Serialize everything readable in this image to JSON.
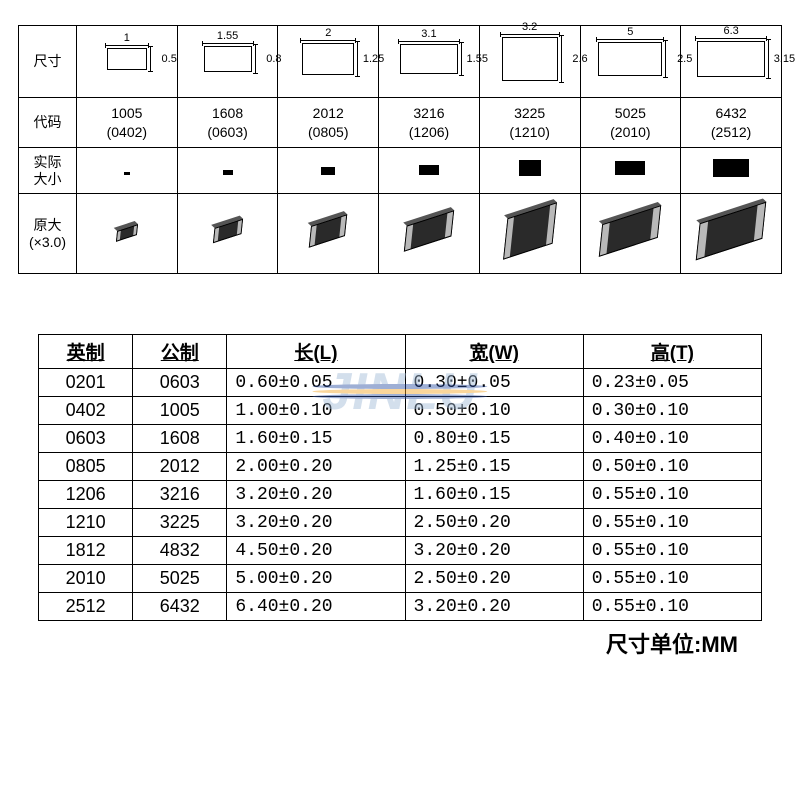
{
  "topTable": {
    "rowLabels": {
      "size": "尺寸",
      "code": "代码",
      "actual": "实际\n大小",
      "x3": "原大\n(×3.0)"
    },
    "columns": [
      {
        "w": 1.0,
        "h": 0.5,
        "rect_w": 40,
        "rect_h": 22,
        "code1": "1005",
        "code2": "(0402)",
        "chip_w": 6,
        "chip_h": 3,
        "smd_w": 22,
        "smd_h": 10,
        "pad": 3
      },
      {
        "w": 1.55,
        "h": 0.8,
        "rect_w": 48,
        "rect_h": 26,
        "code1": "1608",
        "code2": "(0603)",
        "chip_w": 10,
        "chip_h": 5,
        "smd_w": 30,
        "smd_h": 14,
        "pad": 4
      },
      {
        "w": 2.0,
        "h": 1.25,
        "rect_w": 52,
        "rect_h": 32,
        "code1": "2012",
        "code2": "(0805)",
        "chip_w": 14,
        "chip_h": 8,
        "smd_w": 38,
        "smd_h": 20,
        "pad": 5
      },
      {
        "w": 3.1,
        "h": 1.55,
        "rect_w": 58,
        "rect_h": 30,
        "code1": "3216",
        "code2": "(1206)",
        "chip_w": 20,
        "chip_h": 10,
        "smd_w": 50,
        "smd_h": 24,
        "pad": 6
      },
      {
        "w": 3.2,
        "h": 2.6,
        "rect_w": 56,
        "rect_h": 44,
        "code1": "3225",
        "code2": "(1210)",
        "chip_w": 22,
        "chip_h": 16,
        "smd_w": 52,
        "smd_h": 38,
        "pad": 6
      },
      {
        "w": 5.0,
        "h": 2.5,
        "rect_w": 64,
        "rect_h": 34,
        "code1": "5025",
        "code2": "(2010)",
        "chip_w": 30,
        "chip_h": 14,
        "smd_w": 62,
        "smd_h": 30,
        "pad": 7
      },
      {
        "w": 6.3,
        "h": 3.15,
        "rect_w": 68,
        "rect_h": 36,
        "code1": "6432",
        "code2": "(2512)",
        "chip_w": 36,
        "chip_h": 18,
        "smd_w": 70,
        "smd_h": 34,
        "pad": 8
      }
    ],
    "colors": {
      "border": "#000000",
      "chip_body": "#2a2a2a",
      "chip_pad": "#b9b9b9"
    }
  },
  "watermark": {
    "text": "JINLU"
  },
  "bottomTable": {
    "headers": [
      "英制",
      "公制",
      "长(L)",
      "宽(W)",
      "高(T)"
    ],
    "rows": [
      [
        "0201",
        "0603",
        "0.60±0.05",
        "0.30±0.05",
        "0.23±0.05"
      ],
      [
        "0402",
        "1005",
        "1.00±0.10",
        "0.50±0.10",
        "0.30±0.10"
      ],
      [
        "0603",
        "1608",
        "1.60±0.15",
        "0.80±0.15",
        "0.40±0.10"
      ],
      [
        "0805",
        "2012",
        "2.00±0.20",
        "1.25±0.15",
        "0.50±0.10"
      ],
      [
        "1206",
        "3216",
        "3.20±0.20",
        "1.60±0.15",
        "0.55±0.10"
      ],
      [
        "1210",
        "3225",
        "3.20±0.20",
        "2.50±0.20",
        "0.55±0.10"
      ],
      [
        "1812",
        "4832",
        "4.50±0.20",
        "3.20±0.20",
        "0.55±0.10"
      ],
      [
        "2010",
        "5025",
        "5.00±0.20",
        "2.50±0.20",
        "0.55±0.10"
      ],
      [
        "2512",
        "6432",
        "6.40±0.20",
        "3.20±0.20",
        "0.55±0.10"
      ]
    ],
    "col_align": [
      "center",
      "center",
      "left",
      "left",
      "left"
    ]
  },
  "unitNote": "尺寸单位:MM"
}
